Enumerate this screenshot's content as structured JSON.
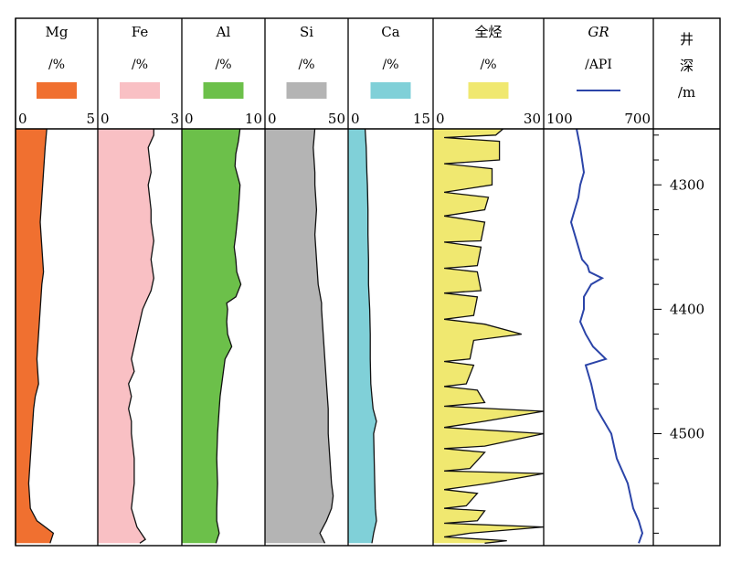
{
  "chart_data": {
    "type": "area",
    "depth_axis": {
      "title": [
        "井",
        "深",
        "/m"
      ],
      "range": [
        4255,
        4590
      ],
      "major_ticks": [
        4300,
        4400,
        4500
      ],
      "minor_step": 20
    },
    "tracks": [
      {
        "name": "Mg",
        "unit": "/%",
        "scale": [
          0,
          5
        ],
        "color": "#f07030",
        "legend": "swatch",
        "samples": [
          [
            4255,
            1.9
          ],
          [
            4270,
            1.8
          ],
          [
            4290,
            1.7
          ],
          [
            4310,
            1.6
          ],
          [
            4330,
            1.5
          ],
          [
            4350,
            1.6
          ],
          [
            4370,
            1.7
          ],
          [
            4380,
            1.6
          ],
          [
            4400,
            1.5
          ],
          [
            4420,
            1.4
          ],
          [
            4440,
            1.3
          ],
          [
            4460,
            1.4
          ],
          [
            4470,
            1.2
          ],
          [
            4480,
            1.1
          ],
          [
            4500,
            1.0
          ],
          [
            4520,
            0.9
          ],
          [
            4540,
            0.8
          ],
          [
            4560,
            0.9
          ],
          [
            4570,
            1.3
          ],
          [
            4580,
            2.3
          ],
          [
            4588,
            2.1
          ]
        ]
      },
      {
        "name": "Fe",
        "unit": "/%",
        "scale": [
          0,
          3
        ],
        "color": "#f9c0c4",
        "legend": "swatch",
        "samples": [
          [
            4255,
            2.0
          ],
          [
            4260,
            2.0
          ],
          [
            4270,
            1.8
          ],
          [
            4290,
            1.9
          ],
          [
            4300,
            1.8
          ],
          [
            4320,
            1.9
          ],
          [
            4330,
            1.9
          ],
          [
            4345,
            2.0
          ],
          [
            4360,
            1.9
          ],
          [
            4375,
            2.0
          ],
          [
            4385,
            1.9
          ],
          [
            4395,
            1.7
          ],
          [
            4400,
            1.6
          ],
          [
            4410,
            1.5
          ],
          [
            4420,
            1.4
          ],
          [
            4430,
            1.3
          ],
          [
            4440,
            1.2
          ],
          [
            4450,
            1.3
          ],
          [
            4460,
            1.1
          ],
          [
            4470,
            1.2
          ],
          [
            4480,
            1.1
          ],
          [
            4490,
            1.2
          ],
          [
            4500,
            1.2
          ],
          [
            4520,
            1.3
          ],
          [
            4540,
            1.3
          ],
          [
            4560,
            1.2
          ],
          [
            4575,
            1.4
          ],
          [
            4585,
            1.7
          ],
          [
            4588,
            1.5
          ]
        ]
      },
      {
        "name": "Al",
        "unit": "/%",
        "scale": [
          0,
          10
        ],
        "color": "#6cc04a",
        "legend": "swatch",
        "samples": [
          [
            4255,
            7.0
          ],
          [
            4265,
            6.8
          ],
          [
            4275,
            6.5
          ],
          [
            4285,
            6.4
          ],
          [
            4300,
            7.0
          ],
          [
            4310,
            6.9
          ],
          [
            4320,
            6.8
          ],
          [
            4340,
            6.5
          ],
          [
            4350,
            6.3
          ],
          [
            4360,
            6.5
          ],
          [
            4370,
            6.6
          ],
          [
            4380,
            7.1
          ],
          [
            4390,
            6.5
          ],
          [
            4395,
            5.4
          ],
          [
            4400,
            5.5
          ],
          [
            4410,
            5.4
          ],
          [
            4420,
            5.5
          ],
          [
            4430,
            6.0
          ],
          [
            4440,
            5.2
          ],
          [
            4460,
            4.8
          ],
          [
            4470,
            4.6
          ],
          [
            4480,
            4.5
          ],
          [
            4500,
            4.3
          ],
          [
            4520,
            4.2
          ],
          [
            4540,
            4.3
          ],
          [
            4560,
            4.2
          ],
          [
            4570,
            4.2
          ],
          [
            4580,
            4.5
          ],
          [
            4588,
            4.1
          ]
        ]
      },
      {
        "name": "Si",
        "unit": "/%",
        "scale": [
          0,
          50
        ],
        "color": "#b4b4b4",
        "legend": "swatch",
        "samples": [
          [
            4255,
            30
          ],
          [
            4270,
            29
          ],
          [
            4290,
            30
          ],
          [
            4300,
            30
          ],
          [
            4320,
            31
          ],
          [
            4340,
            30
          ],
          [
            4360,
            31
          ],
          [
            4380,
            32
          ],
          [
            4395,
            34
          ],
          [
            4400,
            34
          ],
          [
            4420,
            35
          ],
          [
            4440,
            36
          ],
          [
            4460,
            37
          ],
          [
            4480,
            38
          ],
          [
            4500,
            38
          ],
          [
            4520,
            39
          ],
          [
            4540,
            40
          ],
          [
            4550,
            41
          ],
          [
            4560,
            40
          ],
          [
            4570,
            37
          ],
          [
            4580,
            33
          ],
          [
            4588,
            36
          ]
        ]
      },
      {
        "name": "Ca",
        "unit": "/%",
        "scale": [
          0,
          15
        ],
        "color": "#80d0d8",
        "legend": "swatch",
        "samples": [
          [
            4255,
            3.0
          ],
          [
            4270,
            3.2
          ],
          [
            4290,
            3.3
          ],
          [
            4300,
            3.4
          ],
          [
            4320,
            3.5
          ],
          [
            4340,
            3.5
          ],
          [
            4360,
            3.6
          ],
          [
            4380,
            3.6
          ],
          [
            4400,
            3.8
          ],
          [
            4420,
            3.9
          ],
          [
            4440,
            3.9
          ],
          [
            4460,
            4.0
          ],
          [
            4470,
            4.2
          ],
          [
            4480,
            4.4
          ],
          [
            4490,
            5.0
          ],
          [
            4500,
            4.5
          ],
          [
            4520,
            4.6
          ],
          [
            4540,
            4.7
          ],
          [
            4560,
            4.8
          ],
          [
            4570,
            5.0
          ],
          [
            4580,
            4.5
          ],
          [
            4588,
            4.2
          ]
        ]
      },
      {
        "name": "全烃",
        "unit": "/%",
        "scale": [
          0,
          30
        ],
        "color": "#f0e870",
        "legend": "swatch",
        "samples": [
          [
            4255,
            19
          ],
          [
            4260,
            17
          ],
          [
            4262,
            3
          ],
          [
            4265,
            18
          ],
          [
            4280,
            18
          ],
          [
            4283,
            3
          ],
          [
            4287,
            16
          ],
          [
            4300,
            16
          ],
          [
            4306,
            3
          ],
          [
            4310,
            15
          ],
          [
            4320,
            14
          ],
          [
            4325,
            3
          ],
          [
            4330,
            14
          ],
          [
            4345,
            13
          ],
          [
            4346,
            3
          ],
          [
            4350,
            13
          ],
          [
            4365,
            12
          ],
          [
            4367,
            3
          ],
          [
            4370,
            12
          ],
          [
            4385,
            13
          ],
          [
            4387,
            3
          ],
          [
            4390,
            12
          ],
          [
            4405,
            11
          ],
          [
            4408,
            3
          ],
          [
            4412,
            14
          ],
          [
            4420,
            24
          ],
          [
            4425,
            11
          ],
          [
            4440,
            10
          ],
          [
            4442,
            3
          ],
          [
            4445,
            11
          ],
          [
            4460,
            9
          ],
          [
            4462,
            3
          ],
          [
            4465,
            12
          ],
          [
            4475,
            14
          ],
          [
            4478,
            3
          ],
          [
            4482,
            30
          ],
          [
            4490,
            14
          ],
          [
            4495,
            3
          ],
          [
            4500,
            30
          ],
          [
            4510,
            14
          ],
          [
            4512,
            3
          ],
          [
            4515,
            14
          ],
          [
            4528,
            10
          ],
          [
            4530,
            3
          ],
          [
            4532,
            30
          ],
          [
            4540,
            15
          ],
          [
            4545,
            3
          ],
          [
            4548,
            12
          ],
          [
            4558,
            9
          ],
          [
            4560,
            3
          ],
          [
            4562,
            14
          ],
          [
            4570,
            12
          ],
          [
            4572,
            3
          ],
          [
            4575,
            30
          ],
          [
            4580,
            10
          ],
          [
            4583,
            3
          ],
          [
            4586,
            20
          ],
          [
            4588,
            14
          ]
        ]
      },
      {
        "name": "GR",
        "unit": "/API",
        "scale": [
          100,
          700
        ],
        "color": "#2b44a8",
        "legend": "line",
        "samples": [
          [
            4255,
            280
          ],
          [
            4270,
            300
          ],
          [
            4290,
            320
          ],
          [
            4300,
            300
          ],
          [
            4310,
            290
          ],
          [
            4320,
            270
          ],
          [
            4330,
            250
          ],
          [
            4340,
            270
          ],
          [
            4350,
            290
          ],
          [
            4360,
            310
          ],
          [
            4365,
            340
          ],
          [
            4370,
            350
          ],
          [
            4375,
            420
          ],
          [
            4380,
            360
          ],
          [
            4390,
            320
          ],
          [
            4400,
            320
          ],
          [
            4410,
            300
          ],
          [
            4420,
            330
          ],
          [
            4430,
            370
          ],
          [
            4440,
            440
          ],
          [
            4445,
            330
          ],
          [
            4460,
            360
          ],
          [
            4480,
            390
          ],
          [
            4490,
            430
          ],
          [
            4500,
            470
          ],
          [
            4520,
            500
          ],
          [
            4540,
            560
          ],
          [
            4560,
            590
          ],
          [
            4570,
            620
          ],
          [
            4580,
            640
          ],
          [
            4588,
            620
          ]
        ]
      }
    ]
  }
}
